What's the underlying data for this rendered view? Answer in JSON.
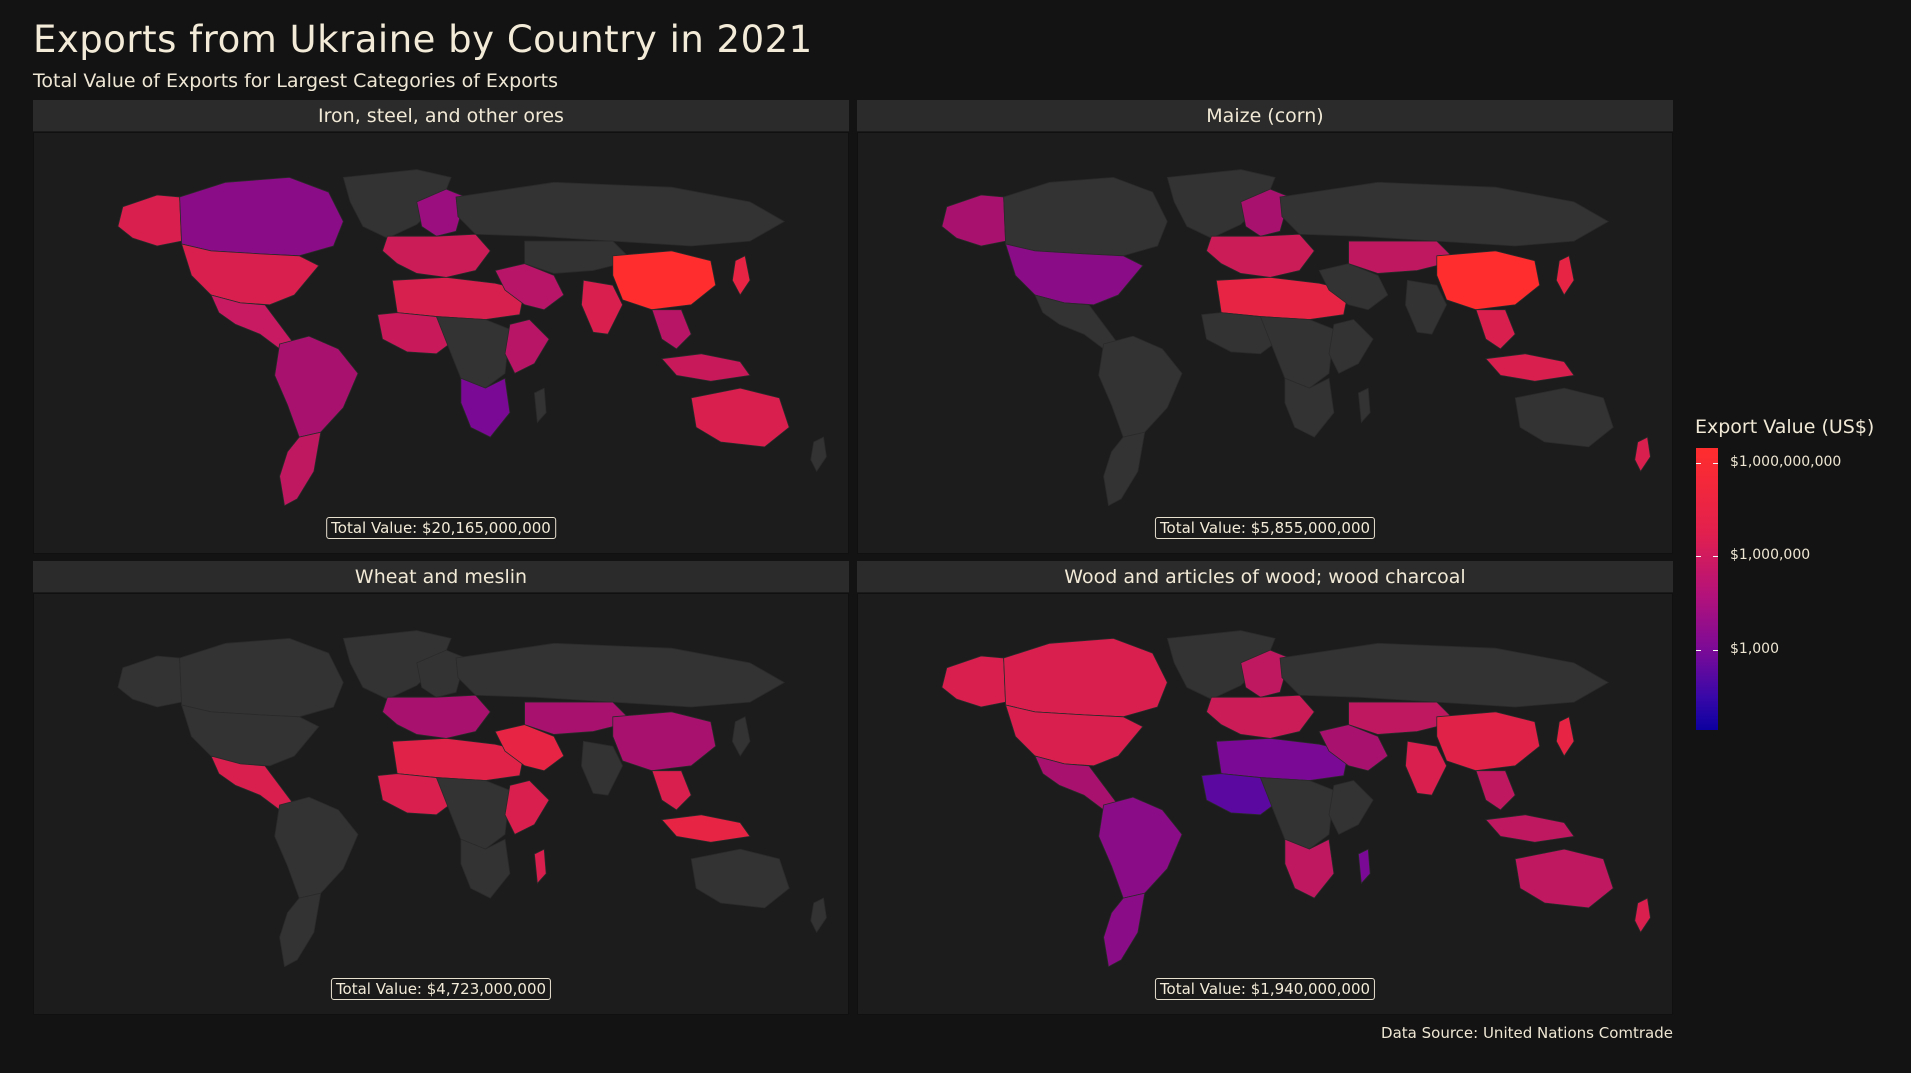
{
  "title": "Exports from Ukraine by Country in 2021",
  "subtitle": "Total Value of Exports for Largest Categories of Exports",
  "source": "Data Source: United Nations Comtrade",
  "legend": {
    "title": "Export Value (US$)",
    "scale": "log",
    "ticks": [
      "$1,000,000,000",
      "$1,000,000",
      "$1,000"
    ],
    "colors": {
      "high": "#ff2d2d",
      "mid": "#b4127a",
      "low": "#0c00a0",
      "no_data": "#333333"
    }
  },
  "panels": [
    {
      "name": "Iron, steel, and other ores",
      "total": "Total Value: $20,165,000,000",
      "fills": {
        "north_america": "#d81f4e",
        "canada": "#8a0c86",
        "alaska": "#d81f4e",
        "greenland": "#333333",
        "central_america": "#c81a62",
        "south_america": "#a8126e",
        "southern_cone": "#c01860",
        "europe": "#cc1c58",
        "scandinavia": "#9a0e80",
        "russia": "#333333",
        "north_africa": "#d8204e",
        "west_africa": "#c8195a",
        "central_africa": "#333333",
        "east_africa": "#b81566",
        "southern_africa": "#7a0a96",
        "madagascar": "#333333",
        "middle_east": "#b81468",
        "central_asia": "#333333",
        "india": "#d81f4e",
        "china": "#ff2d2d",
        "southeast_asia": "#b81566",
        "japan": "#e82444",
        "indonesia": "#c8195a",
        "australia": "#d81f4e",
        "new_zealand": "#333333"
      }
    },
    {
      "name": "Maize (corn)",
      "total": "Total Value: $5,855,000,000",
      "fills": {
        "north_america": "#8a0c86",
        "canada": "#333333",
        "alaska": "#a8126e",
        "greenland": "#333333",
        "central_america": "#333333",
        "south_america": "#333333",
        "southern_cone": "#333333",
        "europe": "#cc1c58",
        "scandinavia": "#a8126e",
        "russia": "#333333",
        "north_africa": "#e82444",
        "west_africa": "#333333",
        "central_africa": "#333333",
        "east_africa": "#333333",
        "southern_africa": "#333333",
        "madagascar": "#333333",
        "middle_east": "#333333",
        "central_asia": "#c01860",
        "india": "#333333",
        "china": "#ff2d2d",
        "southeast_asia": "#d81f4e",
        "japan": "#e82444",
        "indonesia": "#d81f4e",
        "australia": "#333333",
        "new_zealand": "#d81f4e"
      }
    },
    {
      "name": "Wheat and meslin",
      "total": "Total Value: $4,723,000,000",
      "fills": {
        "north_america": "#333333",
        "canada": "#333333",
        "alaska": "#333333",
        "greenland": "#333333",
        "central_america": "#d81f4e",
        "south_america": "#333333",
        "southern_cone": "#333333",
        "europe": "#a8126e",
        "scandinavia": "#333333",
        "russia": "#333333",
        "north_africa": "#e02248",
        "west_africa": "#d81f4e",
        "central_africa": "#333333",
        "east_africa": "#d81f4e",
        "southern_africa": "#333333",
        "madagascar": "#d81f4e",
        "middle_east": "#e82444",
        "central_asia": "#a8126e",
        "india": "#333333",
        "china": "#a8126e",
        "southeast_asia": "#d81f4e",
        "japan": "#333333",
        "indonesia": "#e82444",
        "australia": "#333333",
        "new_zealand": "#333333"
      }
    },
    {
      "name": "Wood and articles of wood; wood charcoal",
      "total": "Total Value: $1,940,000,000",
      "fills": {
        "north_america": "#d81f4e",
        "canada": "#d81f4e",
        "alaska": "#d81f4e",
        "greenland": "#333333",
        "central_america": "#a8126e",
        "south_america": "#8a0c86",
        "southern_cone": "#8a0c86",
        "europe": "#cc1c58",
        "scandinavia": "#c01860",
        "russia": "#333333",
        "north_africa": "#7a0a96",
        "west_africa": "#5a08a0",
        "central_africa": "#333333",
        "east_africa": "#333333",
        "southern_africa": "#c01860",
        "madagascar": "#7a0a96",
        "middle_east": "#a8126e",
        "central_asia": "#c01860",
        "india": "#d81f4e",
        "china": "#e02248",
        "southeast_asia": "#c01860",
        "japan": "#e82444",
        "indonesia": "#c01860",
        "australia": "#c01860",
        "new_zealand": "#d81f4e"
      }
    }
  ]
}
